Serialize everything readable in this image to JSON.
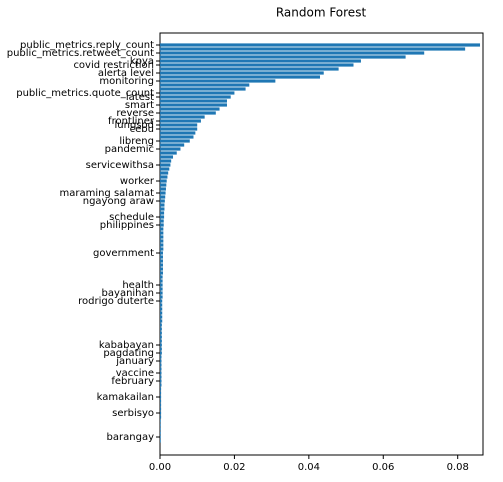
{
  "chart_data": {
    "type": "barh",
    "title": "Random Forest",
    "color": "#1f77b4",
    "categories": [
      "public_metrics.reply_count",
      null,
      "public_metrics.retweet_count",
      null,
      "kpya",
      "covid restriction",
      null,
      "alerta level",
      null,
      "monitoring",
      null,
      null,
      "public_metrics.quote_count",
      "latest",
      null,
      "smart",
      null,
      "reverse",
      null,
      "frontliner",
      "lungsod",
      "cebu",
      null,
      null,
      "libreng",
      null,
      "pandemic",
      null,
      null,
      null,
      "servicewithsa",
      null,
      null,
      null,
      "worker",
      null,
      null,
      "maraming salamat",
      null,
      "ngayong araw",
      null,
      null,
      null,
      "schedule",
      null,
      "philippines",
      null,
      null,
      null,
      null,
      null,
      null,
      "government",
      null,
      null,
      null,
      null,
      null,
      null,
      null,
      "health",
      null,
      "bayanihan",
      null,
      "rodrigo duterte",
      null,
      null,
      null,
      null,
      null,
      null,
      null,
      null,
      null,
      null,
      "kababayan",
      null,
      "pagdating",
      null,
      "january",
      null,
      null,
      "vaccine",
      null,
      "february",
      null,
      null,
      null,
      "kamakailan",
      null,
      null,
      null,
      "serbisyo",
      null,
      null,
      null,
      null,
      null,
      "barangay",
      null
    ],
    "values": [
      0.086,
      0.082,
      0.071,
      0.066,
      0.054,
      0.052,
      0.048,
      0.044,
      0.043,
      0.031,
      0.024,
      0.023,
      0.02,
      0.019,
      0.018,
      0.018,
      0.016,
      0.015,
      0.012,
      0.011,
      0.01,
      0.01,
      0.0095,
      0.009,
      0.008,
      0.0065,
      0.0055,
      0.0045,
      0.0035,
      0.003,
      0.0028,
      0.0025,
      0.0022,
      0.002,
      0.0018,
      0.0017,
      0.0016,
      0.0015,
      0.0014,
      0.0013,
      0.0012,
      0.0012,
      0.0011,
      0.0011,
      0.001,
      0.001,
      0.0009,
      0.0009,
      0.0009,
      0.0009,
      0.0009,
      0.0009,
      0.0008,
      0.0008,
      0.0008,
      0.0008,
      0.0008,
      0.0008,
      0.0007,
      0.0007,
      0.0007,
      0.0007,
      0.0007,
      0.0007,
      0.0006,
      0.0006,
      0.0006,
      0.0006,
      0.0006,
      0.0006,
      0.0005,
      0.0005,
      0.0005,
      0.0005,
      0.0005,
      0.0005,
      0.0005,
      0.0005,
      0.0004,
      0.0004,
      0.0004,
      0.0004,
      0.0004,
      0.0004,
      0.0004,
      0.0004,
      0.0003,
      0.0003,
      0.0003,
      0.0003,
      0.0003,
      0.0003,
      0.0003,
      0.0003,
      0.0002,
      0.0002,
      0.0002,
      0.0002,
      0.0002,
      0.0002
    ],
    "xlim": [
      0,
      0.0868
    ],
    "xticks": [
      {
        "value": 0,
        "label": "0.00"
      },
      {
        "value": 0.02,
        "label": "0.02"
      },
      {
        "value": 0.04,
        "label": "0.04"
      },
      {
        "value": 0.06,
        "label": "0.06"
      },
      {
        "value": 0.08,
        "label": "0.08"
      }
    ]
  }
}
